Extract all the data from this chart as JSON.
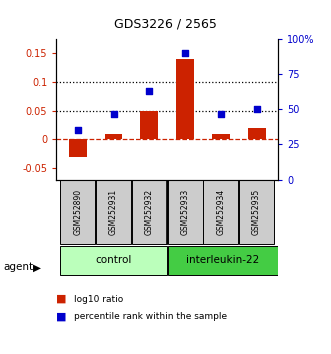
{
  "title": "GDS3226 / 2565",
  "samples": [
    "GSM252890",
    "GSM252931",
    "GSM252932",
    "GSM252933",
    "GSM252934",
    "GSM252935"
  ],
  "log10_ratio": [
    -0.03,
    0.01,
    0.05,
    0.14,
    0.01,
    0.02
  ],
  "percentile_rank_right": [
    35,
    47,
    63,
    90,
    47,
    50
  ],
  "ylim_left": [
    -0.07,
    0.175
  ],
  "ylim_right": [
    0,
    100
  ],
  "yticks_left": [
    -0.05,
    0.0,
    0.05,
    0.1,
    0.15
  ],
  "yticks_right": [
    0,
    25,
    50,
    75,
    100
  ],
  "ytick_labels_left": [
    "-0.05",
    "0",
    "0.05",
    "0.1",
    "0.15"
  ],
  "ytick_labels_right": [
    "0",
    "25",
    "50",
    "75",
    "100%"
  ],
  "hlines": [
    0.05,
    0.1
  ],
  "bar_color": "#cc2200",
  "dot_color": "#0000cc",
  "zero_line_color": "#cc2200",
  "hline_color": "#000000",
  "control_color": "#bbffbb",
  "interleukin_color": "#44cc44",
  "sample_bg_color": "#cccccc",
  "agent_label": "agent",
  "control_label": "control",
  "interleukin_label": "interleukin-22",
  "legend_bar_label": "log10 ratio",
  "legend_dot_label": "percentile rank within the sample",
  "bar_width": 0.5
}
